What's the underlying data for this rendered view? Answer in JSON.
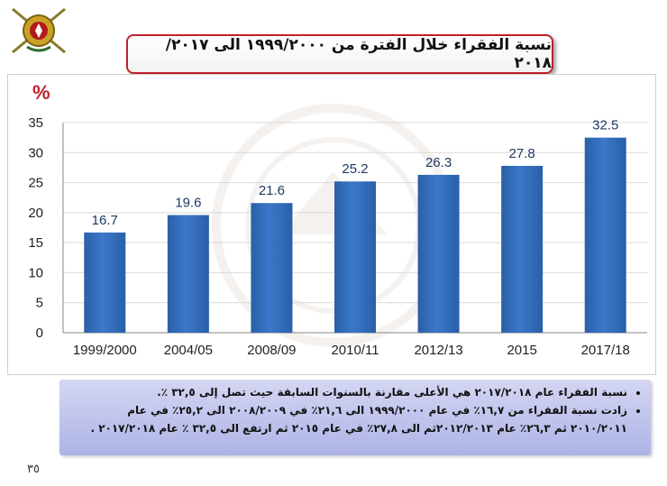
{
  "title": "نسبة الفقراء خلال الفترة من ١٩٩٩/٢٠٠٠ الى ٢٠١٧/ ٢٠١٨",
  "chart_data": {
    "type": "bar",
    "title": "",
    "ylabel": "%",
    "xlabel": "",
    "categories": [
      "1999/2000",
      "2004/05",
      "2008/09",
      "2010/11",
      "2012/13",
      "2015",
      "2017/18"
    ],
    "values": [
      16.7,
      19.6,
      21.6,
      25.2,
      26.3,
      27.8,
      32.5
    ],
    "data_labels": [
      "16.7",
      "19.6",
      "21.6",
      "25.2",
      "26.3",
      "27.8",
      "32.5"
    ],
    "ylim": [
      0,
      35
    ],
    "yticks": [
      "0",
      "5",
      "10",
      "15",
      "20",
      "25",
      "30",
      "35"
    ],
    "grid": true,
    "legend": "none",
    "colors": {
      "bar": "#3b78c9",
      "label": "#1f3864",
      "grid": "#d9d9d9"
    }
  },
  "notes": [
    "نسبة الفقراء عام ٢٠١٧/٢٠١٨ هي الأعلى مقارنة بالسنوات السابقة حيث تصل إلى ٣٢,٥ ٪.",
    "زادت نسبة الفقراء من ١٦,٧٪ في عام ١٩٩٩/٢٠٠٠ الى ٢١,٦٪ في ٢٠٠٨/٢٠٠٩ الى ٢٥,٢٪ في عام ٢٠١٠/٢٠١١ ثم ٢٦,٣٪ عام ٢٠١٢/٢٠١٣ثم الى ٢٧,٨٪ في عام ٢٠١٥ ثم ارتفع الى ٣٢,٥ ٪ عام ٢٠١٧/٢٠١٨ ."
  ],
  "page_number": "٣٥"
}
